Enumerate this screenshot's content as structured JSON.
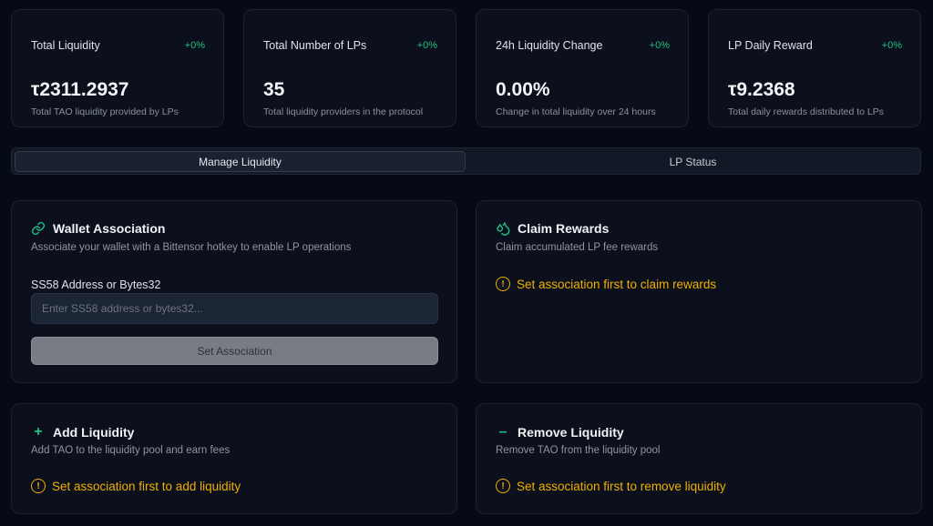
{
  "stats": [
    {
      "label": "Total Liquidity",
      "change": "+0%",
      "value": "τ2311.2937",
      "sub": "Total TAO liquidity provided by LPs"
    },
    {
      "label": "Total Number of LPs",
      "change": "+0%",
      "value": "35",
      "sub": "Total liquidity providers in the protocol"
    },
    {
      "label": "24h Liquidity Change",
      "change": "+0%",
      "value": "0.00%",
      "sub": "Change in total liquidity over 24 hours"
    },
    {
      "label": "LP Daily Reward",
      "change": "+0%",
      "value": "τ9.2368",
      "sub": "Total daily rewards distributed to LPs"
    }
  ],
  "tabs": [
    {
      "label": "Manage Liquidity",
      "active": true
    },
    {
      "label": "LP Status",
      "active": false
    }
  ],
  "wallet": {
    "title": "Wallet Association",
    "desc": "Associate your wallet with a Bittensor hotkey to enable LP operations",
    "field_label": "SS58 Address or Bytes32",
    "placeholder": "Enter SS58 address or bytes32...",
    "value": "",
    "button": "Set Association",
    "icon": "link-icon"
  },
  "claim": {
    "title": "Claim Rewards",
    "desc": "Claim accumulated LP fee rewards",
    "warning": "Set association first to claim rewards",
    "icon": "droplets-icon"
  },
  "add": {
    "title": "Add Liquidity",
    "desc": "Add TAO to the liquidity pool and earn fees",
    "warning": "Set association first to add liquidity",
    "icon": "plus-icon"
  },
  "remove": {
    "title": "Remove Liquidity",
    "desc": "Remove TAO from the liquidity pool",
    "warning": "Set association first to remove liquidity",
    "icon": "minus-icon"
  },
  "colors": {
    "accent": "#1fbf80",
    "warning": "#f0b000",
    "background": "#060a14",
    "card": "#0b101c"
  }
}
